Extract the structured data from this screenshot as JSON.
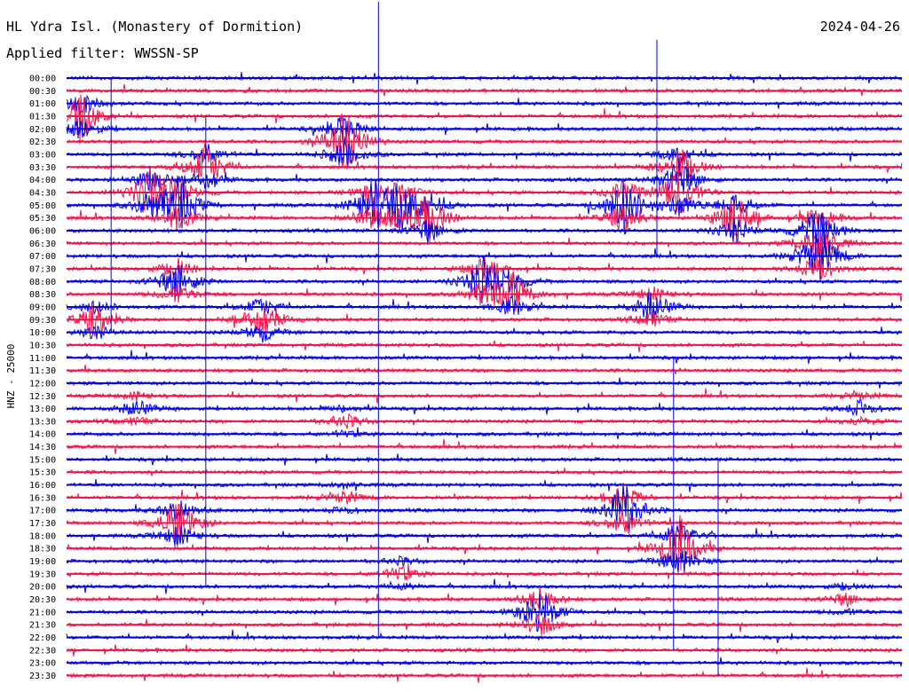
{
  "header": {
    "station": "HL Ydra Isl. (Monastery of Dormition)",
    "filter": "Applied filter: WWSSN-SP",
    "date": "2024-04-26"
  },
  "chart_data": {
    "type": "line",
    "title": "HL Ydra Isl. (Monastery of Dormition)",
    "ylabel": "HNZ - 25000",
    "trace_colors": [
      "#0000e6",
      "#f0134a"
    ],
    "rows": [
      "00:00",
      "00:30",
      "01:00",
      "01:30",
      "02:00",
      "02:30",
      "03:00",
      "03:30",
      "04:00",
      "04:30",
      "05:00",
      "05:30",
      "06:00",
      "06:30",
      "07:00",
      "07:30",
      "08:00",
      "08:30",
      "09:00",
      "09:30",
      "10:00",
      "10:30",
      "11:00",
      "11:30",
      "12:00",
      "12:30",
      "13:00",
      "13:30",
      "14:00",
      "14:30",
      "15:00",
      "15:30",
      "16:00",
      "16:30",
      "17:00",
      "17:30",
      "18:00",
      "18:30",
      "19:00",
      "19:30",
      "20:00",
      "20:30",
      "21:00",
      "21:30",
      "22:00",
      "22:30",
      "23:00",
      "23:30"
    ],
    "events": [
      {
        "row": 3,
        "minute": 0.5,
        "amplitude": 30
      },
      {
        "row": 5,
        "minute": 10,
        "amplitude": 40
      },
      {
        "row": 7,
        "minute": 22,
        "amplitude": 25
      },
      {
        "row": 7,
        "minute": 5,
        "amplitude": 28
      },
      {
        "row": 9,
        "minute": 3,
        "amplitude": 30
      },
      {
        "row": 10,
        "minute": 12,
        "amplitude": 28
      },
      {
        "row": 9,
        "minute": 22,
        "amplitude": 30
      },
      {
        "row": 10,
        "minute": 4,
        "amplitude": 35
      },
      {
        "row": 10,
        "minute": 11,
        "amplitude": 30
      },
      {
        "row": 11,
        "minute": 13,
        "amplitude": 30
      },
      {
        "row": 12,
        "minute": 27,
        "amplitude": 30
      },
      {
        "row": 14,
        "minute": 27,
        "amplitude": 35
      },
      {
        "row": 16,
        "minute": 15,
        "amplitude": 30
      },
      {
        "row": 17,
        "minute": 16,
        "amplitude": 25
      },
      {
        "row": 10,
        "minute": 20,
        "amplitude": 35
      },
      {
        "row": 11,
        "minute": 24,
        "amplitude": 30
      },
      {
        "row": 16,
        "minute": 4,
        "amplitude": 25
      },
      {
        "row": 19,
        "minute": 7,
        "amplitude": 25
      },
      {
        "row": 18,
        "minute": 21,
        "amplitude": 20
      },
      {
        "row": 19,
        "minute": 1,
        "amplitude": 18
      },
      {
        "row": 26,
        "minute": 2.5,
        "amplitude": 10
      },
      {
        "row": 27,
        "minute": 10,
        "amplitude": 9
      },
      {
        "row": 33,
        "minute": 10,
        "amplitude": 8
      },
      {
        "row": 35,
        "minute": 4,
        "amplitude": 30
      },
      {
        "row": 34,
        "minute": 20,
        "amplitude": 35
      },
      {
        "row": 37,
        "minute": 22,
        "amplitude": 40
      },
      {
        "row": 42,
        "minute": 17,
        "amplitude": 30
      },
      {
        "row": 39,
        "minute": 12,
        "amplitude": 10
      },
      {
        "row": 41,
        "minute": 28,
        "amplitude": 8
      },
      {
        "row": 26,
        "minute": 28.5,
        "amplitude": 9
      }
    ],
    "spikes": [
      {
        "minute": 11.2,
        "from_row": -6,
        "to_row": 44
      },
      {
        "minute": 21.2,
        "from_row": -3,
        "to_row": 14
      },
      {
        "minute": 1.6,
        "from_row": 0,
        "to_row": 20
      },
      {
        "minute": 5.0,
        "from_row": 3,
        "to_row": 40
      },
      {
        "minute": 21.8,
        "from_row": 22,
        "to_row": 45
      },
      {
        "minute": 23.4,
        "from_row": 30,
        "to_row": 47
      }
    ]
  }
}
